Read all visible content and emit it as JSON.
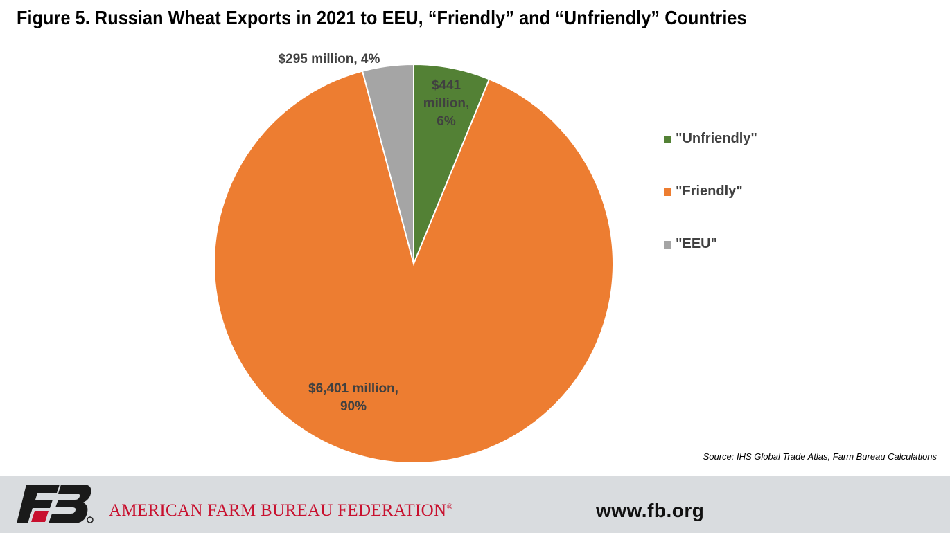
{
  "header": {
    "title": "Figure 5. Russian Wheat Exports in 2021 to EEU, “Friendly” and “Unfriendly” Countries"
  },
  "chart_data": {
    "type": "pie",
    "title": "Figure 5. Russian Wheat Exports in 2021 to EEU, “Friendly” and “Unfriendly” Countries",
    "start_angle": "12 o'clock",
    "direction": "clockwise",
    "legend": "right",
    "slices": [
      {
        "name": "\"Unfriendly\"",
        "value": 441,
        "percent": 6,
        "color": "#538135",
        "label_lines": [
          "$441",
          "million,",
          "6%"
        ]
      },
      {
        "name": "\"Friendly\"",
        "value": 6401,
        "percent": 90,
        "color": "#ed7d31",
        "label_lines": [
          "$6,401 million,",
          "90%"
        ]
      },
      {
        "name": "\"EEU\"",
        "value": 295,
        "percent": 4,
        "color": "#a5a5a5",
        "label_lines": [
          "$295 million, 4%"
        ]
      }
    ]
  },
  "source": "Source: IHS Global Trade Atlas, Farm Bureau Calculations",
  "footer": {
    "logo_text": "FB",
    "org_name": "AMERICAN FARM BUREAU FEDERATION",
    "registered_mark": "®",
    "url": "www.fb.org",
    "colors": {
      "logo_dark": "#1a1a1a",
      "logo_red": "#c8102e",
      "band": "#d9dcdf"
    }
  }
}
